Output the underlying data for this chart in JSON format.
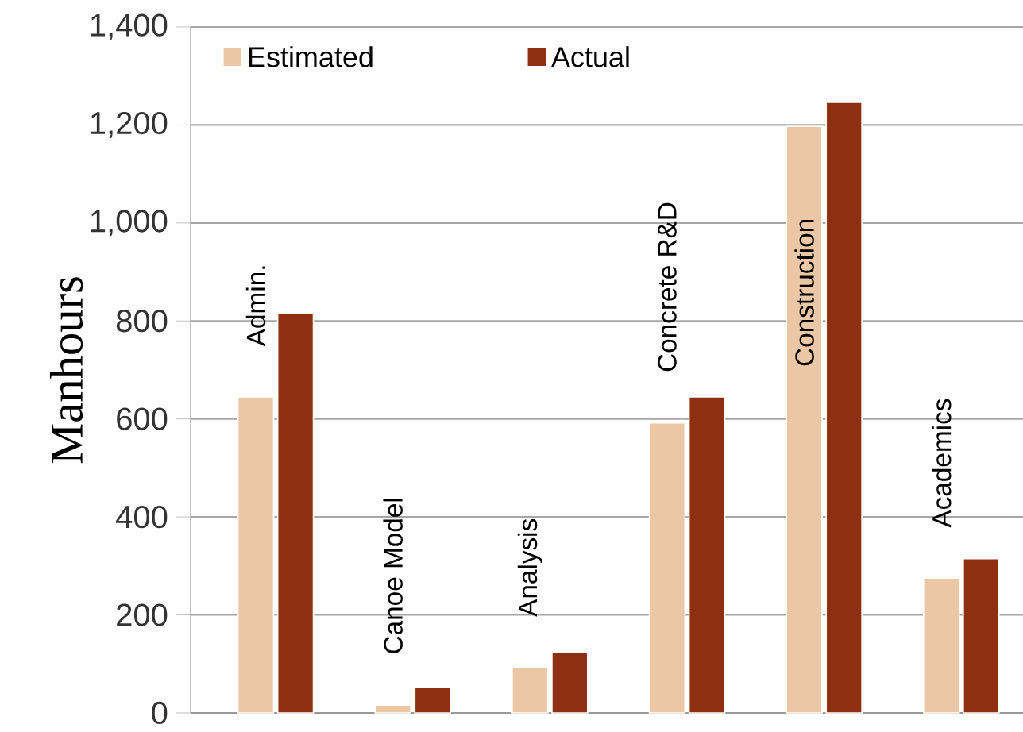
{
  "chart_data": {
    "type": "bar",
    "ylabel": "Manhours",
    "categories": [
      "Admin.",
      "Canoe Model",
      "Analysis",
      "Concrete  R&D",
      "Construction",
      "Academics"
    ],
    "series": [
      {
        "name": "Estimated",
        "color": "#ebc7a6",
        "values": [
          645,
          16,
          93,
          592,
          1197,
          275
        ]
      },
      {
        "name": "Actual",
        "color": "#8e2f12",
        "values": [
          815,
          53,
          124,
          645,
          1246,
          315
        ]
      }
    ],
    "ylim": [
      0,
      1400
    ],
    "yticks": [
      0,
      200,
      400,
      600,
      800,
      {
        "value": 1000,
        "label": "1,000"
      },
      {
        "value": 1200,
        "label": "1,200"
      },
      {
        "value": 1400,
        "label": "1,400"
      }
    ],
    "grid": "y",
    "legend": "top left"
  }
}
